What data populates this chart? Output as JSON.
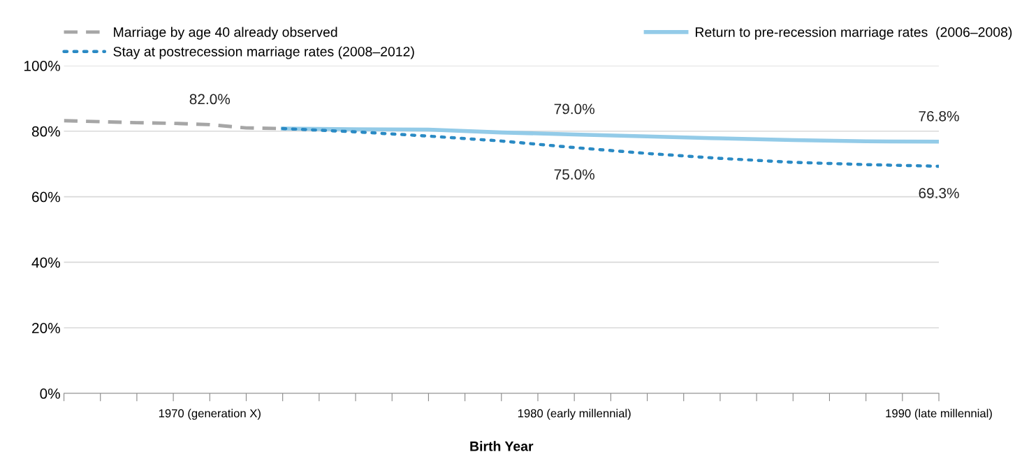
{
  "chart_data": {
    "type": "line",
    "xlabel": "Birth Year",
    "xlim": [
      1966,
      1990
    ],
    "xticks": [
      {
        "value": 1966,
        "label": null
      },
      {
        "value": 1967,
        "label": null
      },
      {
        "value": 1968,
        "label": null
      },
      {
        "value": 1969,
        "label": null
      },
      {
        "value": 1970,
        "label": "1970 (generation X)"
      },
      {
        "value": 1971,
        "label": null
      },
      {
        "value": 1972,
        "label": null
      },
      {
        "value": 1973,
        "label": null
      },
      {
        "value": 1974,
        "label": null
      },
      {
        "value": 1975,
        "label": null
      },
      {
        "value": 1976,
        "label": null
      },
      {
        "value": 1977,
        "label": null
      },
      {
        "value": 1978,
        "label": null
      },
      {
        "value": 1979,
        "label": null
      },
      {
        "value": 1980,
        "label": "1980 (early millennial)"
      },
      {
        "value": 1981,
        "label": null
      },
      {
        "value": 1982,
        "label": null
      },
      {
        "value": 1983,
        "label": null
      },
      {
        "value": 1984,
        "label": null
      },
      {
        "value": 1985,
        "label": null
      },
      {
        "value": 1986,
        "label": null
      },
      {
        "value": 1987,
        "label": null
      },
      {
        "value": 1988,
        "label": null
      },
      {
        "value": 1989,
        "label": null
      },
      {
        "value": 1990,
        "label": "1990 (late millennial)"
      }
    ],
    "ylim": [
      0,
      100
    ],
    "yticks": [
      {
        "value": 0,
        "label": "0%"
      },
      {
        "value": 20,
        "label": "20%"
      },
      {
        "value": 40,
        "label": "40%"
      },
      {
        "value": 60,
        "label": "60%"
      },
      {
        "value": 80,
        "label": "80%"
      },
      {
        "value": 100,
        "label": "100%"
      }
    ],
    "grid": "y",
    "legend": "top",
    "series": [
      {
        "name": "Marriage by age 40 already observed",
        "color": "#a6a6a6",
        "line_style": "dashed",
        "x": [
          1966,
          1967,
          1968,
          1969,
          1970,
          1971,
          1972
        ],
        "values": [
          83.2,
          82.9,
          82.6,
          82.4,
          82.0,
          81.0,
          80.8
        ],
        "value_labels": [
          null,
          null,
          null,
          null,
          "82.0%",
          null,
          null
        ]
      },
      {
        "name": "Return to pre-recession marriage rates  (2006–2008)",
        "color": "#93cbe8",
        "line_style": "solid",
        "x": [
          1972,
          1974,
          1976,
          1978,
          1980,
          1982,
          1984,
          1986,
          1988,
          1990
        ],
        "values": [
          80.8,
          80.6,
          80.5,
          79.6,
          79.0,
          78.4,
          77.8,
          77.3,
          76.9,
          76.8
        ],
        "value_labels": [
          null,
          null,
          null,
          null,
          "79.0%",
          null,
          null,
          null,
          null,
          "76.8%"
        ]
      },
      {
        "name": "Stay at postrecession marriage rates (2008–2012)",
        "color": "#2a8ac4",
        "line_style": "dotted",
        "x": [
          1972,
          1974,
          1976,
          1978,
          1980,
          1982,
          1984,
          1986,
          1988,
          1990
        ],
        "values": [
          80.8,
          79.8,
          78.5,
          77.0,
          75.0,
          73.2,
          71.7,
          70.5,
          69.8,
          69.3
        ],
        "value_labels": [
          null,
          null,
          null,
          null,
          "75.0%",
          null,
          null,
          null,
          null,
          "69.3%"
        ]
      }
    ]
  }
}
